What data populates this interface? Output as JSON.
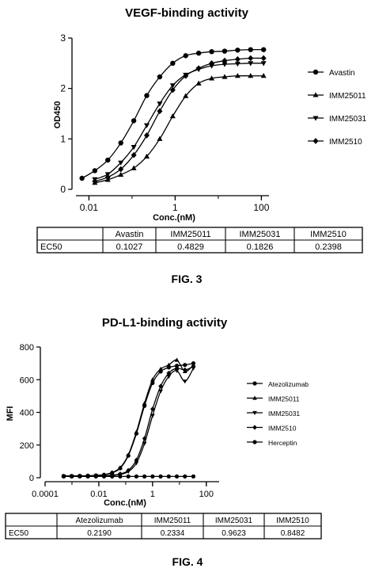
{
  "chart_data": [
    {
      "type": "line",
      "title": "VEGF-binding activity",
      "caption": "FIG. 3",
      "xlabel": "Conc.(nM)",
      "ylabel": "OD450",
      "xscale": "log",
      "xlim": [
        0.005,
        150
      ],
      "ylim": [
        0,
        3
      ],
      "xticks": [
        "0.01",
        "1",
        "100"
      ],
      "yticks": [
        "0",
        "1",
        "2",
        "3"
      ],
      "grid": false,
      "legend_position": "right",
      "x": [
        0.0069,
        0.0137,
        0.0274,
        0.0549,
        0.1098,
        0.2195,
        0.439,
        0.878,
        1.756,
        3.512,
        7.025,
        14.05,
        28.1,
        56.2,
        112.4
      ],
      "series": [
        {
          "name": "Avastin",
          "marker": "circle",
          "values": [
            0.22,
            0.37,
            0.58,
            0.92,
            1.36,
            1.86,
            2.23,
            2.5,
            2.65,
            2.7,
            2.73,
            2.74,
            2.76,
            2.77,
            2.77
          ]
        },
        {
          "name": "IMM25011",
          "marker": "triangle-up",
          "values": [
            null,
            0.13,
            0.19,
            0.29,
            0.42,
            0.65,
            1.0,
            1.45,
            1.85,
            2.1,
            2.2,
            2.23,
            2.25,
            2.25,
            2.25
          ]
        },
        {
          "name": "IMM25031",
          "marker": "triangle-down",
          "values": [
            null,
            0.2,
            0.3,
            0.53,
            0.84,
            1.27,
            1.7,
            2.06,
            2.27,
            2.38,
            2.45,
            2.48,
            2.49,
            2.5,
            2.5
          ]
        },
        {
          "name": "IMM2510",
          "marker": "diamond",
          "values": [
            null,
            0.16,
            0.24,
            0.4,
            0.68,
            1.07,
            1.55,
            1.97,
            2.25,
            2.4,
            2.5,
            2.55,
            2.58,
            2.6,
            2.6
          ]
        }
      ],
      "table": {
        "headers": [
          "",
          "Avastin",
          "IMM25011",
          "IMM25031",
          "IMM2510"
        ],
        "row": [
          "EC50",
          "0.1027",
          "0.4829",
          "0.1826",
          "0.2398"
        ]
      }
    },
    {
      "type": "line",
      "title": "PD-L1-binding activity",
      "caption": "FIG. 4",
      "xlabel": "Conc.(nM)",
      "ylabel": "MFI",
      "xscale": "log",
      "xlim": [
        0.0001,
        300
      ],
      "ylim": [
        0,
        800
      ],
      "xticks": [
        "0.0001",
        "0.01",
        "1",
        "100"
      ],
      "yticks": [
        "0",
        "200",
        "400",
        "600",
        "800"
      ],
      "grid": false,
      "legend_position": "right",
      "x": [
        0.00049,
        0.00098,
        0.00195,
        0.0039,
        0.0078,
        0.0156,
        0.0313,
        0.0625,
        0.125,
        0.25,
        0.5,
        1,
        2,
        4,
        8,
        16,
        33
      ],
      "series": [
        {
          "name": "Atezolizumab",
          "marker": "circle",
          "values": [
            10,
            10,
            11,
            12,
            14,
            18,
            30,
            58,
            135,
            270,
            440,
            580,
            650,
            675,
            685,
            690,
            700
          ]
        },
        {
          "name": "IMM25011",
          "marker": "triangle-up",
          "values": [
            10,
            10,
            11,
            12,
            14,
            19,
            32,
            62,
            140,
            280,
            455,
            600,
            665,
            690,
            720,
            650,
            690
          ]
        },
        {
          "name": "IMM25031",
          "marker": "triangle-down",
          "values": [
            10,
            10,
            10,
            10,
            11,
            12,
            14,
            20,
            38,
            90,
            210,
            380,
            530,
            620,
            655,
            590,
            670
          ]
        },
        {
          "name": "IMM2510",
          "marker": "diamond",
          "values": [
            10,
            10,
            10,
            10,
            11,
            12,
            15,
            23,
            45,
            108,
            240,
            420,
            560,
            640,
            670,
            660,
            680
          ]
        },
        {
          "name": "Herceptin",
          "marker": "circle",
          "values": [
            8,
            8,
            8,
            8,
            8,
            8,
            8,
            8,
            8,
            8,
            8,
            8,
            8,
            8,
            8,
            8,
            8
          ]
        }
      ],
      "table": {
        "headers": [
          "",
          "Atezolizumab",
          "IMM25011",
          "IMM25031",
          "IMM2510"
        ],
        "row": [
          "EC50",
          "0.2190",
          "0.2334",
          "0.9623",
          "0.8482"
        ]
      }
    }
  ]
}
